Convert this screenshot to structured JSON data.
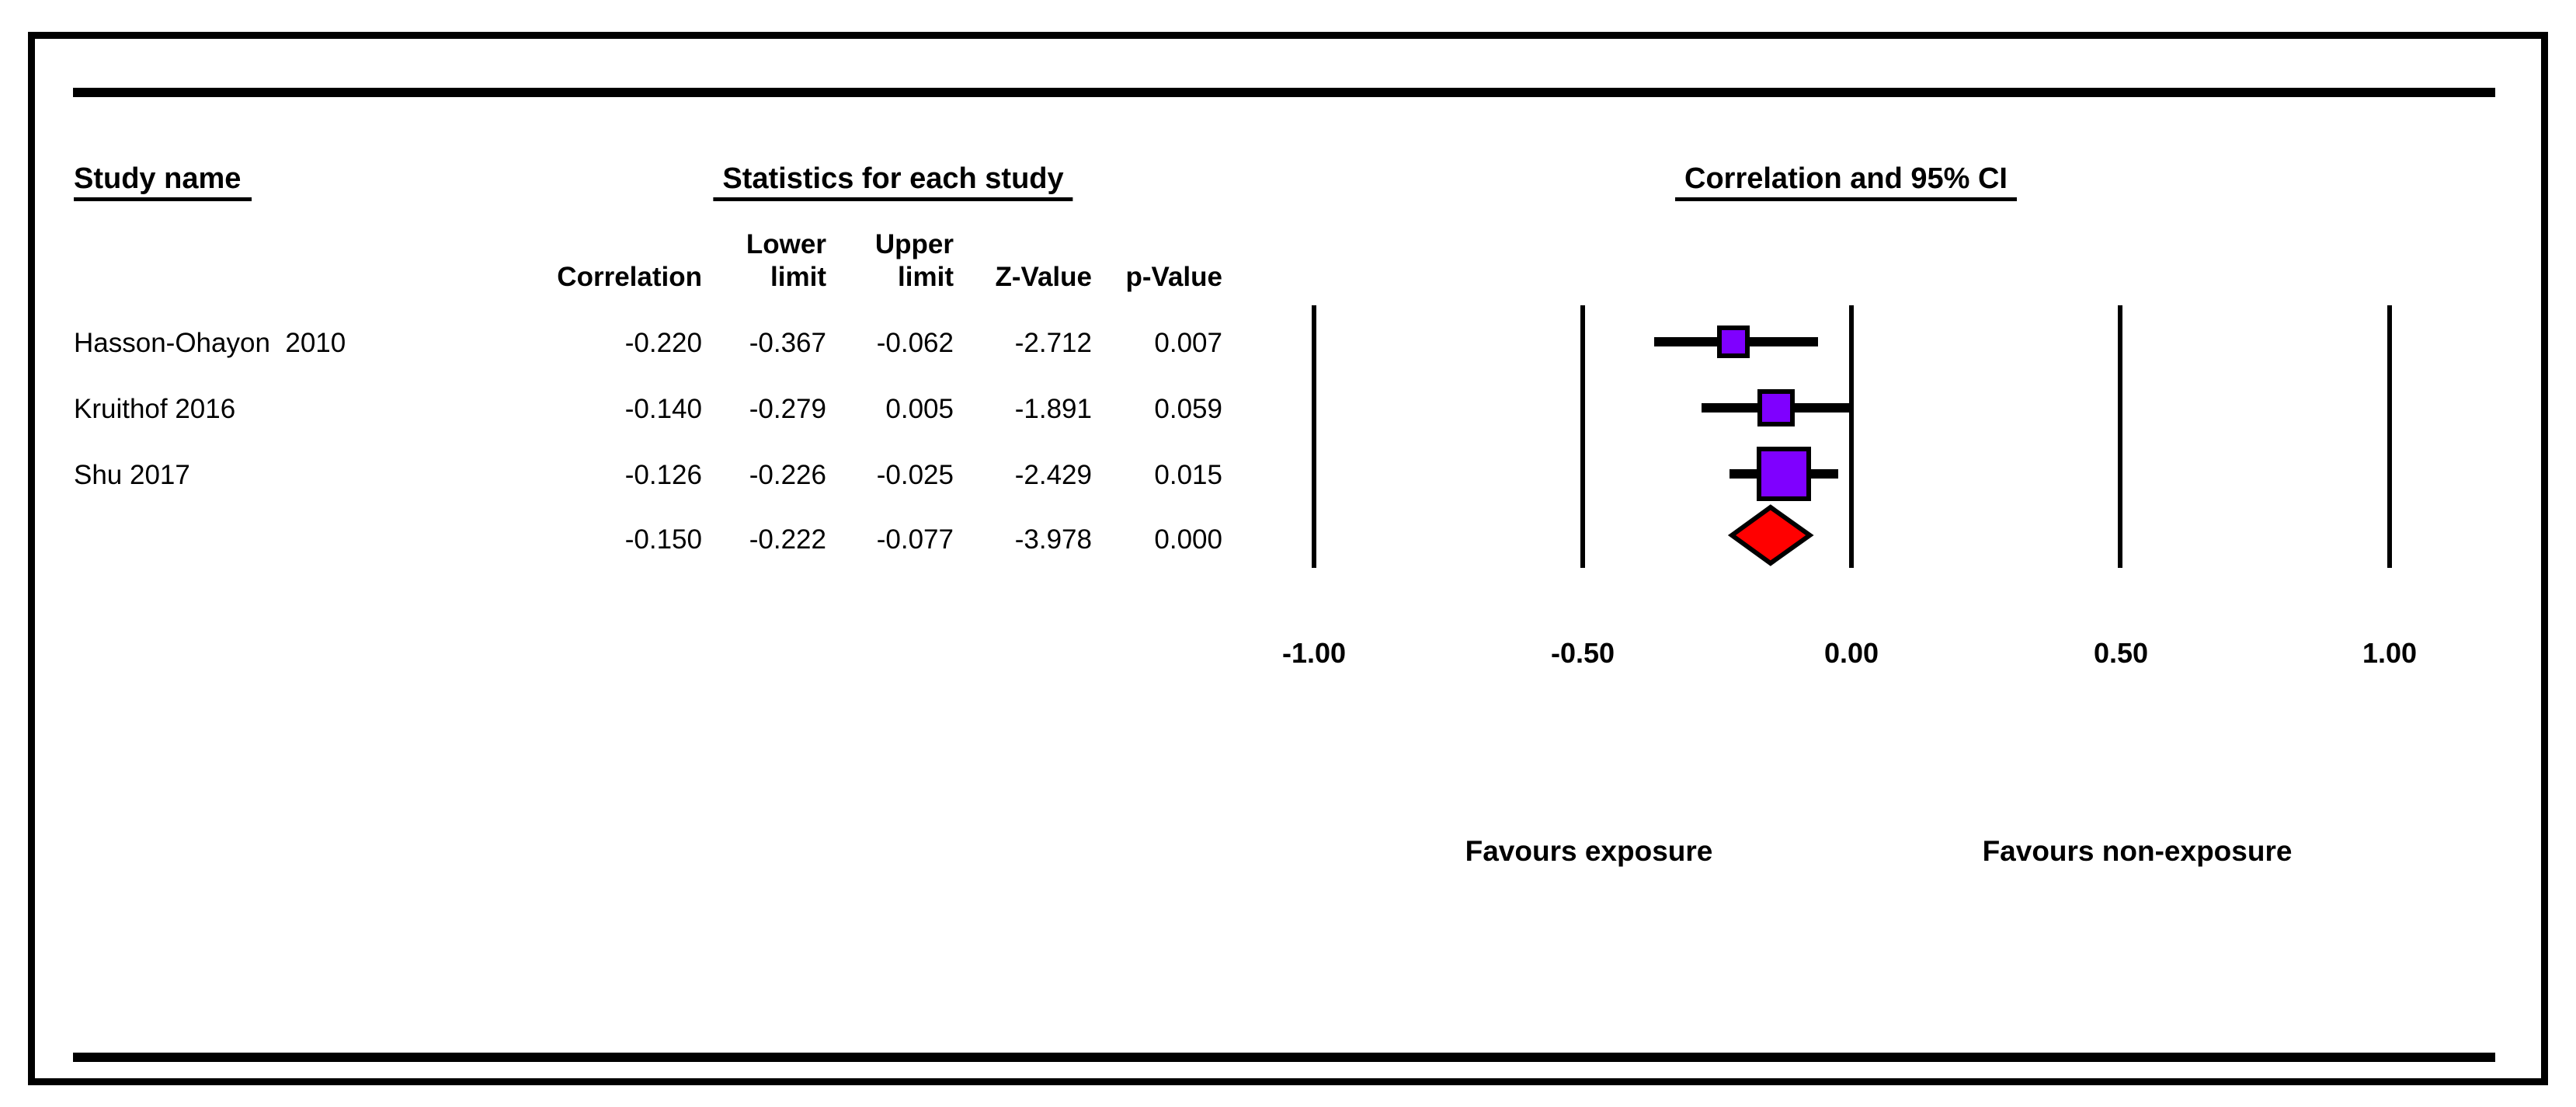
{
  "figure": {
    "study_col_header": "Study name",
    "stats_section_header": "Statistics for each study",
    "plot_section_header": "Correlation and 95% CI",
    "col_headers": {
      "lower_top": "Lower",
      "upper_top": "Upper",
      "correlation": "Correlation",
      "lower_bottom": "limit",
      "upper_bottom": "limit",
      "z": "Z-Value",
      "p": "p-Value"
    },
    "rows": [
      {
        "name": "Hasson-Ohayon  2010",
        "correlation": "-0.220",
        "lower": "-0.367",
        "upper": "-0.062",
        "z": "-2.712",
        "p": "0.007"
      },
      {
        "name": "Kruithof 2016",
        "correlation": "-0.140",
        "lower": "-0.279",
        "upper": "0.005",
        "z": "-1.891",
        "p": "0.059"
      },
      {
        "name": "Shu 2017",
        "correlation": "-0.126",
        "lower": "-0.226",
        "upper": "-0.025",
        "z": "-2.429",
        "p": "0.015"
      },
      {
        "name": "",
        "correlation": "-0.150",
        "lower": "-0.222",
        "upper": "-0.077",
        "z": "-3.978",
        "p": "0.000"
      }
    ],
    "axis_labels": [
      "-1.00",
      "-0.50",
      "0.00",
      "0.50",
      "1.00"
    ],
    "favours_left": "Favours exposure",
    "favours_right": "Favours non-exposure"
  },
  "chart_data": {
    "type": "forest",
    "title": "Correlation and 95% CI",
    "effect_measure": "Correlation",
    "xlim": [
      -1.0,
      1.0
    ],
    "x_ticks": [
      -1.0,
      -0.5,
      0.0,
      0.5,
      1.0
    ],
    "x_tick_labels": [
      "-1.00",
      "-0.50",
      "0.00",
      "0.50",
      "1.00"
    ],
    "favours_left": "Favours exposure",
    "favours_right": "Favours non-exposure",
    "studies": [
      {
        "name": "Hasson-Ohayon 2010",
        "correlation": -0.22,
        "lower": -0.367,
        "upper": -0.062,
        "z": -2.712,
        "p": 0.007,
        "marker_size": 42
      },
      {
        "name": "Kruithof 2016",
        "correlation": -0.14,
        "lower": -0.279,
        "upper": 0.005,
        "z": -1.891,
        "p": 0.059,
        "marker_size": 48
      },
      {
        "name": "Shu 2017",
        "correlation": -0.126,
        "lower": -0.226,
        "upper": -0.025,
        "z": -2.429,
        "p": 0.015,
        "marker_size": 70
      }
    ],
    "summary": {
      "correlation": -0.15,
      "lower": -0.222,
      "upper": -0.077,
      "z": -3.978,
      "p": 0.0
    },
    "colors": {
      "square": "#7F00FF",
      "diamond": "#FF0000",
      "line": "#000000"
    },
    "grid": true,
    "legend": false
  }
}
